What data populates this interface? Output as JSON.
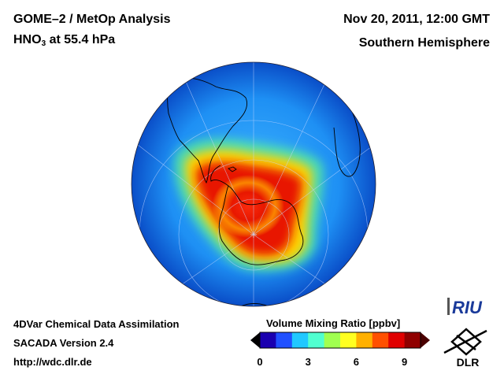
{
  "header": {
    "title_left_1": "GOME–2 / MetOp Analysis",
    "species": "HNO",
    "species_sub": "3",
    "species_level": " at 55.4 hPa",
    "date": "Nov 20, 2011, 12:00 GMT",
    "region": "Southern Hemisphere"
  },
  "footer": {
    "line1": "4DVar Chemical Data Assimilation",
    "line2": "SACADA Version 2.4",
    "line3": "http://wdc.dlr.de"
  },
  "colorbar": {
    "title": "Volume Mixing Ratio [ppbv]",
    "ticks": [
      "0",
      "3",
      "6",
      "9"
    ],
    "min": 0,
    "max": 10,
    "colors": [
      "#1a00b0",
      "#2050ff",
      "#20c8ff",
      "#50ffd0",
      "#a0ff50",
      "#ffff20",
      "#ffb000",
      "#ff5000",
      "#e00000",
      "#900000"
    ]
  },
  "logos": {
    "riu": "RIU",
    "dlr": "DLR"
  },
  "map": {
    "background_color": "#1c8cf0",
    "field_peak_color": "#e81800",
    "field_ring_color": "#ffd400"
  }
}
